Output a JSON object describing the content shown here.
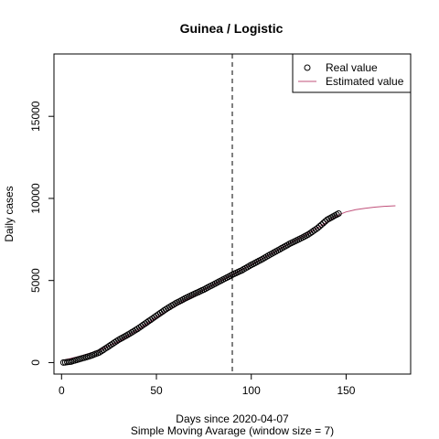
{
  "chart_data": {
    "type": "scatter",
    "title": "Guinea / Logistic",
    "xlabel": "Days since 2020-04-07",
    "subtitle": "Simple Moving Avarage (window size = 7)",
    "ylabel": "Daily cases",
    "xlim": [
      -4,
      184
    ],
    "ylim": [
      -700,
      18800
    ],
    "xticks": [
      0,
      50,
      100,
      150
    ],
    "yticks": [
      0,
      5000,
      10000,
      15000
    ],
    "vline_x": 90,
    "legend": {
      "position": "top-right",
      "items": [
        "Real value",
        "Estimated value"
      ]
    },
    "series": [
      {
        "name": "Real value",
        "style": "points",
        "color": "#000000",
        "x": [
          1,
          5,
          10,
          15,
          20,
          25,
          30,
          35,
          40,
          45,
          50,
          55,
          60,
          65,
          70,
          75,
          80,
          85,
          90,
          95,
          100,
          105,
          110,
          115,
          120,
          125,
          130,
          135,
          140,
          146
        ],
        "y": [
          0,
          60,
          230,
          400,
          620,
          1000,
          1380,
          1700,
          2050,
          2450,
          2850,
          3250,
          3600,
          3900,
          4180,
          4450,
          4750,
          5050,
          5350,
          5620,
          5950,
          6250,
          6580,
          6900,
          7220,
          7500,
          7800,
          8200,
          8700,
          9080
        ]
      },
      {
        "name": "Estimated value",
        "style": "line",
        "color": "#c0507a",
        "x": [
          1,
          10,
          20,
          30,
          40,
          50,
          60,
          70,
          80,
          90,
          100,
          110,
          120,
          130,
          140,
          146,
          150,
          155,
          160,
          165,
          170,
          176
        ],
        "y": [
          150,
          400,
          750,
          1280,
          1980,
          2750,
          3460,
          4110,
          4750,
          5360,
          5970,
          6600,
          7250,
          7870,
          8560,
          9000,
          9180,
          9310,
          9400,
          9470,
          9520,
          9550
        ]
      }
    ]
  },
  "colors": {
    "estimated": "#c0507a",
    "real_stroke": "#000000",
    "vline": "#000000"
  }
}
